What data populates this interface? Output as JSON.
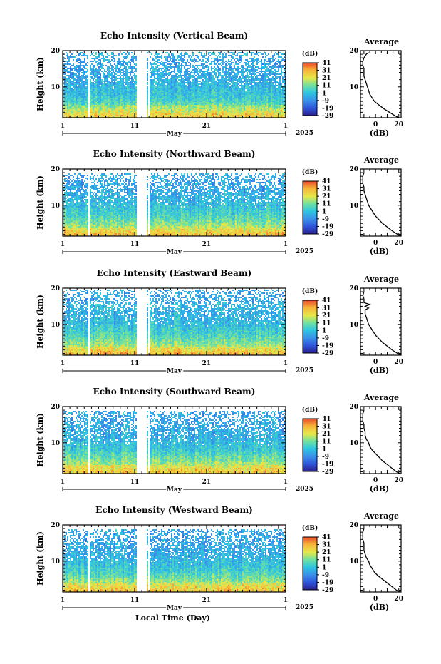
{
  "chart_data": [
    {
      "type": "heatmap",
      "title": "Echo Intensity (Vertical Beam)",
      "xlabel": "Local Time (Day)",
      "ylabel": "Height (km)",
      "x_ticks": [
        "1",
        "11",
        "21",
        "1"
      ],
      "month_label": "May",
      "year_label": "2025",
      "y_ticks": [
        "10",
        "20"
      ],
      "ylim": [
        1.5,
        20
      ],
      "data_gaps_day": [
        [
          4.6,
          4.8
        ],
        [
          11.2,
          12.7
        ],
        [
          12.85,
          13.1
        ]
      ],
      "colorbar": {
        "unit": "(dB)",
        "ticks": [
          "41",
          "31",
          "21",
          "11",
          "1",
          "-9",
          "-19",
          "-29"
        ],
        "range": [
          -29,
          41
        ]
      },
      "intensity_summary": {
        "valid_top_km": 19.5,
        "strong_echo_layer_km": [
          2,
          5
        ]
      },
      "average_profile": {
        "title": "Average",
        "xlabel": "(dB)",
        "x_ticks": [
          "0",
          "20"
        ],
        "y_ticks": [
          "10",
          "20"
        ],
        "xlim": [
          -13,
          22
        ],
        "height_km": [
          1.5,
          2,
          3,
          4,
          5,
          6,
          7,
          8,
          9,
          10,
          11,
          12,
          13,
          14,
          15,
          16,
          17,
          18,
          19,
          19.5
        ],
        "values_db": [
          20,
          17,
          12,
          7,
          3,
          -1,
          -3,
          -5,
          -6,
          -7,
          -8,
          -9,
          -10,
          -10,
          -10,
          -11,
          -11,
          -10,
          -8,
          -6
        ]
      }
    },
    {
      "type": "heatmap",
      "title": "Echo Intensity (Northward Beam)",
      "xlabel": "Local Time (Day)",
      "ylabel": "Height (km)",
      "x_ticks": [
        "1",
        "11",
        "21",
        "1"
      ],
      "month_label": "May",
      "year_label": "2025",
      "y_ticks": [
        "10",
        "20"
      ],
      "ylim": [
        1.5,
        20
      ],
      "data_gaps_day": [
        [
          4.6,
          4.8
        ],
        [
          11.2,
          12.7
        ],
        [
          12.85,
          13.1
        ]
      ],
      "colorbar": {
        "unit": "(dB)",
        "ticks": [
          "41",
          "31",
          "21",
          "11",
          "1",
          "-9",
          "-19",
          "-29"
        ],
        "range": [
          -29,
          41
        ]
      },
      "intensity_summary": {
        "valid_top_km": 19.0,
        "strong_echo_layer_km": [
          2,
          4
        ]
      },
      "average_profile": {
        "title": "Average",
        "xlabel": "(dB)",
        "x_ticks": [
          "0",
          "20"
        ],
        "y_ticks": [
          "10",
          "20"
        ],
        "xlim": [
          -13,
          22
        ],
        "height_km": [
          1.5,
          2,
          3,
          4,
          5,
          6,
          7,
          8,
          9,
          10,
          11,
          12,
          13,
          14,
          15,
          16,
          17,
          18,
          19
        ],
        "values_db": [
          22,
          19,
          14,
          10,
          6,
          3,
          0,
          -2,
          -4,
          -6,
          -7,
          -8,
          -9,
          -10,
          -10,
          -11,
          -11,
          -11,
          -10
        ]
      }
    },
    {
      "type": "heatmap",
      "title": "Echo Intensity (Eastward Beam)",
      "xlabel": "Local Time (Day)",
      "ylabel": "Height (km)",
      "x_ticks": [
        "1",
        "11",
        "21",
        "1"
      ],
      "month_label": "May",
      "year_label": "2025",
      "y_ticks": [
        "10",
        "20"
      ],
      "ylim": [
        1.5,
        20
      ],
      "data_gaps_day": [
        [
          4.6,
          4.8
        ],
        [
          11.2,
          12.7
        ],
        [
          12.85,
          13.1
        ]
      ],
      "colorbar": {
        "unit": "(dB)",
        "ticks": [
          "41",
          "31",
          "21",
          "11",
          "1",
          "-9",
          "-19",
          "-29"
        ],
        "range": [
          -29,
          41
        ]
      },
      "intensity_summary": {
        "valid_top_km": 19.5,
        "strong_echo_layer_km": [
          2,
          4
        ]
      },
      "average_profile": {
        "title": "Average",
        "xlabel": "(dB)",
        "x_ticks": [
          "0",
          "20"
        ],
        "y_ticks": [
          "10",
          "20"
        ],
        "xlim": [
          -13,
          22
        ],
        "height_km": [
          1.5,
          2,
          3,
          4,
          5,
          6,
          7,
          8,
          9,
          10,
          11,
          12,
          13,
          14,
          14.5,
          15,
          15.5,
          16,
          17,
          18,
          19
        ],
        "values_db": [
          22,
          19,
          14,
          10,
          6,
          3,
          0,
          -2,
          -4,
          -6,
          -7,
          -8,
          -9,
          -9,
          -6,
          -9,
          -5,
          -10,
          -10,
          -11,
          -10
        ]
      }
    },
    {
      "type": "heatmap",
      "title": "Echo Intensity (Southward Beam)",
      "xlabel": "Local Time (Day)",
      "ylabel": "Height (km)",
      "x_ticks": [
        "1",
        "11",
        "21",
        "1"
      ],
      "month_label": "May",
      "year_label": "2025",
      "y_ticks": [
        "10",
        "20"
      ],
      "ylim": [
        1.5,
        20
      ],
      "data_gaps_day": [
        [
          4.6,
          4.8
        ],
        [
          11.2,
          12.7
        ],
        [
          12.85,
          13.1
        ]
      ],
      "colorbar": {
        "unit": "(dB)",
        "ticks": [
          "41",
          "31",
          "21",
          "11",
          "1",
          "-9",
          "-19",
          "-29"
        ],
        "range": [
          -29,
          41
        ]
      },
      "intensity_summary": {
        "valid_top_km": 19.0,
        "strong_echo_layer_km": [
          2,
          4
        ]
      },
      "average_profile": {
        "title": "Average",
        "xlabel": "(dB)",
        "x_ticks": [
          "0",
          "20"
        ],
        "y_ticks": [
          "10",
          "20"
        ],
        "xlim": [
          -13,
          22
        ],
        "height_km": [
          1.5,
          2,
          3,
          4,
          5,
          6,
          7,
          8,
          9,
          10,
          11,
          12,
          13,
          14,
          15,
          16,
          17,
          18,
          19
        ],
        "values_db": [
          21,
          18,
          14,
          10,
          6,
          3,
          0,
          -3,
          -5,
          -6,
          -8,
          -9,
          -9,
          -10,
          -10,
          -11,
          -11,
          -11,
          -10
        ]
      }
    },
    {
      "type": "heatmap",
      "title": "Echo Intensity (Westward Beam)",
      "xlabel": "Local Time (Day)",
      "ylabel": "Height (km)",
      "x_ticks": [
        "1",
        "11",
        "21",
        "1"
      ],
      "month_label": "May",
      "year_label": "2025",
      "y_ticks": [
        "10",
        "20"
      ],
      "ylim": [
        1.5,
        20
      ],
      "data_gaps_day": [
        [
          4.6,
          4.8
        ],
        [
          11.2,
          12.7
        ],
        [
          12.85,
          13.1
        ]
      ],
      "colorbar": {
        "unit": "(dB)",
        "ticks": [
          "41",
          "31",
          "21",
          "11",
          "1",
          "-9",
          "-19",
          "-29"
        ],
        "range": [
          -29,
          41
        ]
      },
      "intensity_summary": {
        "valid_top_km": 19.0,
        "strong_echo_layer_km": [
          2,
          4
        ]
      },
      "average_profile": {
        "title": "Average",
        "xlabel": "(dB)",
        "x_ticks": [
          "0",
          "20"
        ],
        "y_ticks": [
          "10",
          "20"
        ],
        "xlim": [
          -13,
          22
        ],
        "height_km": [
          1.5,
          2,
          3,
          4,
          5,
          6,
          7,
          8,
          9,
          10,
          11,
          12,
          13,
          14,
          15,
          16,
          17,
          18,
          19
        ],
        "values_db": [
          21,
          18,
          14,
          10,
          6,
          2,
          -1,
          -3,
          -5,
          -6,
          -8,
          -9,
          -10,
          -10,
          -10,
          -11,
          -11,
          -11,
          -10
        ]
      }
    }
  ],
  "colormap": [
    "#2a1f8c",
    "#2e55d8",
    "#3a8fe8",
    "#2fc4e0",
    "#6fe0a0",
    "#e6e84a",
    "#f7b43a",
    "#e84a2a"
  ]
}
